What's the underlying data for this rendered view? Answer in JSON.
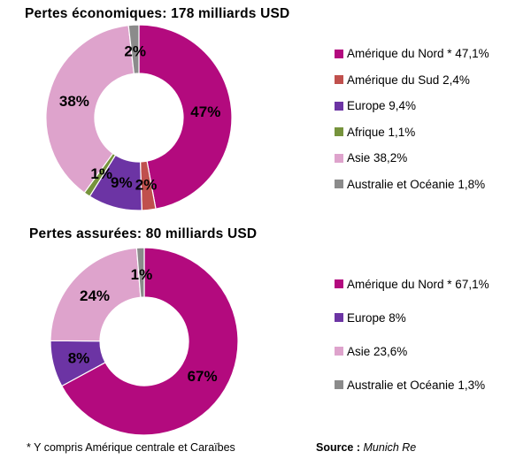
{
  "chart_data": [
    {
      "type": "pie",
      "subtype": "donut",
      "title": "Pertes économiques: 178 milliards USD",
      "total_label": "178 milliards USD",
      "legend_position": "right",
      "start_angle_deg": 0,
      "direction": "clockwise",
      "series": [
        {
          "name": "Amérique du Nord *",
          "value": 47.1,
          "slice_label": "47%",
          "legend_label": "Amérique du Nord * 47,1%",
          "color": "#B30A7E"
        },
        {
          "name": "Amérique du Sud",
          "value": 2.4,
          "slice_label": "2%",
          "legend_label": "Amérique du Sud 2,4%",
          "color": "#C0504D"
        },
        {
          "name": "Europe",
          "value": 9.4,
          "slice_label": "9%",
          "legend_label": "Europe 9,4%",
          "color": "#6C34A4"
        },
        {
          "name": "Afrique",
          "value": 1.1,
          "slice_label": "1%",
          "legend_label": "Afrique 1,1%",
          "color": "#76933C"
        },
        {
          "name": "Asie",
          "value": 38.2,
          "slice_label": "38%",
          "legend_label": "Asie 38,2%",
          "color": "#DEA3CC"
        },
        {
          "name": "Australie et Océanie",
          "value": 1.8,
          "slice_label": "2%",
          "legend_label": "Australie et Océanie 1,8%",
          "color": "#8B8B8B"
        }
      ]
    },
    {
      "type": "pie",
      "subtype": "donut",
      "title": "Pertes assurées: 80 milliards USD",
      "total_label": "80 milliards USD",
      "legend_position": "right",
      "start_angle_deg": 0,
      "direction": "clockwise",
      "series": [
        {
          "name": "Amérique du Nord *",
          "value": 67.1,
          "slice_label": "67%",
          "legend_label": "Amérique du Nord * 67,1%",
          "color": "#B30A7E"
        },
        {
          "name": "Europe",
          "value": 8.0,
          "slice_label": "8%",
          "legend_label": "Europe 8%",
          "color": "#6C34A4"
        },
        {
          "name": "Asie",
          "value": 23.6,
          "slice_label": "24%",
          "legend_label": "Asie 23,6%",
          "color": "#DEA3CC"
        },
        {
          "name": "Australie et Océanie",
          "value": 1.3,
          "slice_label": "1%",
          "legend_label": "Australie et Océanie 1,3%",
          "color": "#8B8B8B"
        }
      ]
    }
  ],
  "footer": {
    "note": "* Y compris Amérique centrale et Caraïbes",
    "source_label": "Source :",
    "source_value": "Munich Re"
  }
}
